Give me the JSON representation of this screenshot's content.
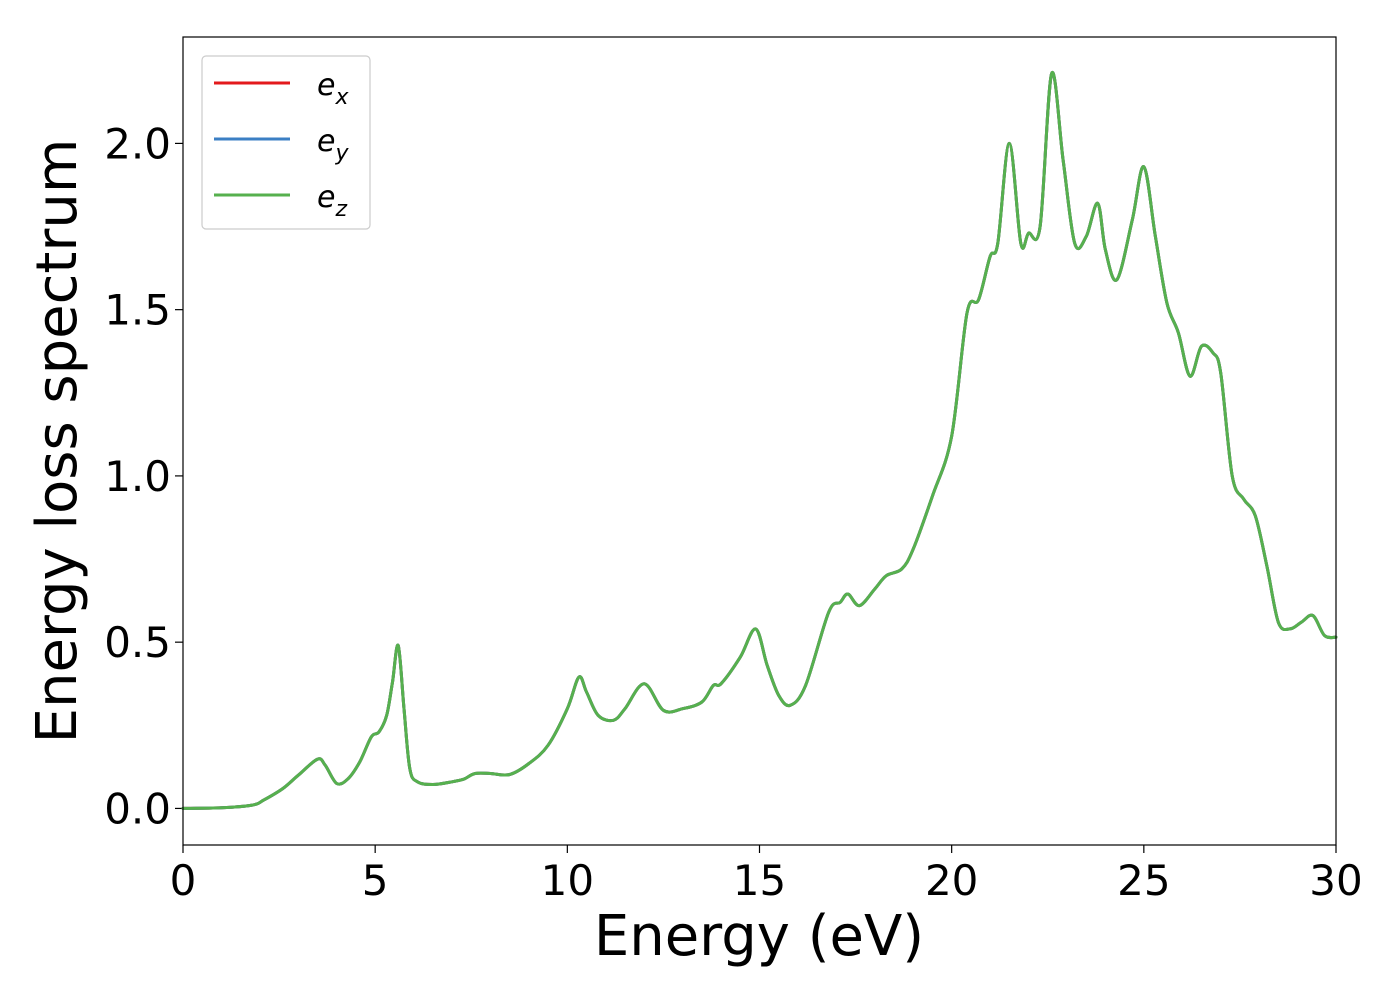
{
  "chart_data": {
    "type": "line",
    "title": "",
    "xlabel": "Energy (eV)",
    "ylabel": "Energy loss spectrum",
    "xlim": [
      0,
      30
    ],
    "ylim": [
      -0.11,
      2.32
    ],
    "xticks": [
      0,
      5,
      10,
      15,
      20,
      25,
      30
    ],
    "xtick_labels": [
      "0",
      "5",
      "10",
      "15",
      "20",
      "25",
      "30"
    ],
    "yticks": [
      0.0,
      0.5,
      1.0,
      1.5,
      2.0
    ],
    "ytick_labels": [
      "0.0",
      "0.5",
      "1.0",
      "1.5",
      "2.0"
    ],
    "grid": false,
    "legend_position": "top-left",
    "x": [
      0,
      1,
      1.8,
      2.1,
      2.6,
      3.0,
      3.5,
      3.7,
      4.0,
      4.3,
      4.6,
      4.9,
      5.1,
      5.3,
      5.45,
      5.6,
      5.75,
      5.9,
      6.1,
      6.5,
      7.0,
      7.3,
      7.6,
      8.0,
      8.5,
      9.0,
      9.5,
      10.0,
      10.3,
      10.5,
      10.8,
      11.2,
      11.5,
      12.0,
      12.5,
      13.0,
      13.5,
      13.8,
      14.0,
      14.5,
      14.9,
      15.2,
      15.5,
      15.8,
      16.2,
      16.8,
      17.1,
      17.3,
      17.6,
      18.0,
      18.3,
      18.7,
      19.0,
      19.5,
      20.0,
      20.4,
      20.7,
      21.0,
      21.2,
      21.5,
      21.8,
      22.0,
      22.3,
      22.6,
      22.9,
      23.2,
      23.5,
      23.8,
      24.0,
      24.3,
      24.7,
      25.0,
      25.3,
      25.6,
      25.9,
      26.2,
      26.5,
      26.8,
      27.0,
      27.3,
      27.6,
      27.9,
      28.2,
      28.5,
      28.8,
      29.1,
      29.4,
      29.7,
      30.0
    ],
    "series": [
      {
        "name": "e_x",
        "color": "#e31a1c",
        "values": [
          0.0,
          0.002,
          0.01,
          0.025,
          0.06,
          0.1,
          0.148,
          0.13,
          0.075,
          0.09,
          0.14,
          0.215,
          0.23,
          0.28,
          0.38,
          0.49,
          0.3,
          0.12,
          0.08,
          0.072,
          0.08,
          0.088,
          0.105,
          0.105,
          0.102,
          0.135,
          0.19,
          0.3,
          0.395,
          0.35,
          0.28,
          0.265,
          0.3,
          0.375,
          0.295,
          0.3,
          0.32,
          0.37,
          0.375,
          0.455,
          0.54,
          0.43,
          0.34,
          0.31,
          0.37,
          0.59,
          0.62,
          0.645,
          0.61,
          0.66,
          0.7,
          0.72,
          0.78,
          0.94,
          1.12,
          1.49,
          1.53,
          1.66,
          1.7,
          2.0,
          1.7,
          1.73,
          1.75,
          2.21,
          1.95,
          1.7,
          1.72,
          1.82,
          1.68,
          1.59,
          1.77,
          1.93,
          1.72,
          1.52,
          1.43,
          1.3,
          1.39,
          1.37,
          1.31,
          1.0,
          0.93,
          0.88,
          0.73,
          0.56,
          0.54,
          0.56,
          0.58,
          0.52,
          0.515
        ]
      },
      {
        "name": "e_y",
        "color": "#3b7fc4",
        "values": [
          0.0,
          0.002,
          0.01,
          0.025,
          0.06,
          0.1,
          0.148,
          0.13,
          0.075,
          0.09,
          0.14,
          0.215,
          0.23,
          0.28,
          0.38,
          0.49,
          0.3,
          0.12,
          0.08,
          0.072,
          0.08,
          0.088,
          0.105,
          0.105,
          0.102,
          0.135,
          0.19,
          0.3,
          0.395,
          0.35,
          0.28,
          0.265,
          0.3,
          0.375,
          0.295,
          0.3,
          0.32,
          0.37,
          0.375,
          0.455,
          0.54,
          0.43,
          0.34,
          0.31,
          0.37,
          0.59,
          0.62,
          0.645,
          0.61,
          0.66,
          0.7,
          0.72,
          0.78,
          0.94,
          1.12,
          1.49,
          1.53,
          1.66,
          1.7,
          2.0,
          1.7,
          1.73,
          1.75,
          2.21,
          1.95,
          1.7,
          1.72,
          1.82,
          1.68,
          1.59,
          1.77,
          1.93,
          1.72,
          1.52,
          1.43,
          1.3,
          1.39,
          1.37,
          1.31,
          1.0,
          0.93,
          0.88,
          0.73,
          0.56,
          0.54,
          0.56,
          0.58,
          0.52,
          0.515
        ]
      },
      {
        "name": "e_z",
        "color": "#56b04e",
        "values": [
          0.0,
          0.002,
          0.01,
          0.025,
          0.06,
          0.1,
          0.148,
          0.13,
          0.075,
          0.09,
          0.14,
          0.215,
          0.23,
          0.28,
          0.38,
          0.49,
          0.3,
          0.12,
          0.08,
          0.072,
          0.08,
          0.088,
          0.105,
          0.105,
          0.102,
          0.135,
          0.19,
          0.3,
          0.395,
          0.35,
          0.28,
          0.265,
          0.3,
          0.375,
          0.295,
          0.3,
          0.32,
          0.37,
          0.375,
          0.455,
          0.54,
          0.43,
          0.34,
          0.31,
          0.37,
          0.59,
          0.62,
          0.645,
          0.61,
          0.66,
          0.7,
          0.72,
          0.78,
          0.94,
          1.12,
          1.49,
          1.53,
          1.66,
          1.7,
          2.0,
          1.7,
          1.73,
          1.75,
          2.21,
          1.95,
          1.7,
          1.72,
          1.82,
          1.68,
          1.59,
          1.77,
          1.93,
          1.72,
          1.52,
          1.43,
          1.3,
          1.39,
          1.37,
          1.31,
          1.0,
          0.93,
          0.88,
          0.73,
          0.56,
          0.54,
          0.56,
          0.58,
          0.52,
          0.515
        ]
      }
    ],
    "legend": [
      {
        "base": "e",
        "sub": "x",
        "color": "#e31a1c"
      },
      {
        "base": "e",
        "sub": "y",
        "color": "#3b7fc4"
      },
      {
        "base": "e",
        "sub": "z",
        "color": "#56b04e"
      }
    ]
  }
}
